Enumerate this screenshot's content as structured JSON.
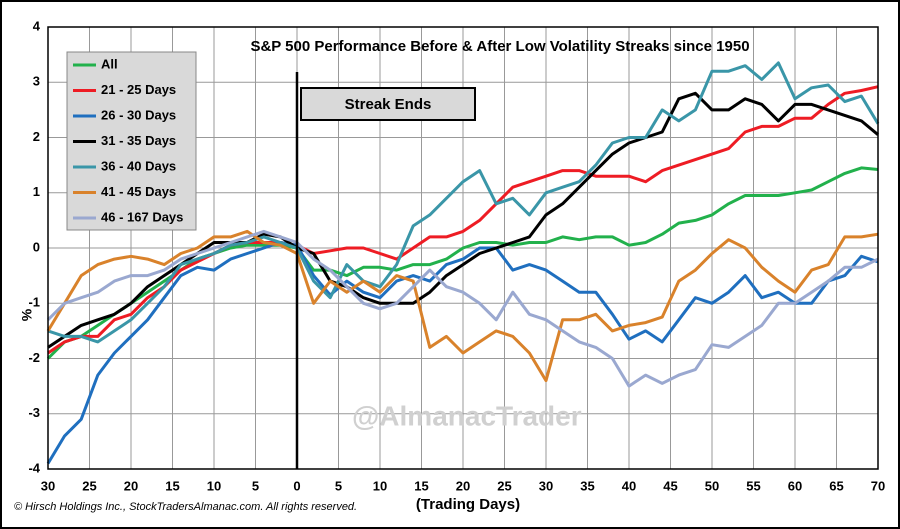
{
  "chart_data": {
    "type": "line",
    "title": "S&P 500 Performance Before & After Low Volatility Streaks since 1950",
    "annotation": "Streak Ends",
    "event_x": 0,
    "watermark": "@AlmanacTrader",
    "source": "© Hirsch Holdings Inc., StockTradersAlmanac.com. All rights reserved.",
    "x_label": "(Trading Days)",
    "y_label": "%",
    "grid": true,
    "legend": "upper left",
    "xlim": [
      -30,
      70
    ],
    "ylim": [
      -4,
      4
    ],
    "xticks": [
      {
        "value": -30,
        "label": "30"
      },
      {
        "value": -25,
        "label": "25"
      },
      {
        "value": -20,
        "label": "20"
      },
      {
        "value": -15,
        "label": "15"
      },
      {
        "value": -10,
        "label": "10"
      },
      {
        "value": -5,
        "label": "5"
      },
      0,
      5,
      10,
      15,
      20,
      25,
      30,
      35,
      40,
      45,
      50,
      55,
      60,
      65,
      70
    ],
    "yticks": [
      -4,
      -3,
      -2,
      -1,
      0,
      1,
      2,
      3,
      4
    ],
    "x": [
      -30,
      -28,
      -26,
      -24,
      -22,
      -20,
      -18,
      -16,
      -14,
      -12,
      -10,
      -8,
      -6,
      -4,
      -2,
      0,
      2,
      4,
      6,
      8,
      10,
      12,
      14,
      16,
      18,
      20,
      22,
      24,
      26,
      28,
      30,
      32,
      34,
      36,
      38,
      40,
      42,
      44,
      46,
      48,
      50,
      52,
      54,
      56,
      58,
      60,
      62,
      64,
      66,
      68,
      70
    ],
    "series": [
      {
        "name": "All",
        "color": "#22b14c",
        "values": [
          -2.0,
          -1.7,
          -1.6,
          -1.4,
          -1.2,
          -1.0,
          -0.8,
          -0.6,
          -0.4,
          -0.2,
          -0.1,
          0.0,
          0.05,
          0.05,
          0.05,
          0.0,
          -0.4,
          -0.4,
          -0.5,
          -0.35,
          -0.35,
          -0.4,
          -0.3,
          -0.3,
          -0.2,
          0.0,
          0.1,
          0.1,
          0.05,
          0.1,
          0.1,
          0.2,
          0.15,
          0.2,
          0.2,
          0.05,
          0.1,
          0.25,
          0.45,
          0.5,
          0.6,
          0.8,
          0.95,
          0.95,
          0.95,
          1.0,
          1.05,
          1.2,
          1.35,
          1.45,
          1.42
        ]
      },
      {
        "name": "21 - 25 Days",
        "color": "#ee1c24",
        "values": [
          -1.9,
          -1.7,
          -1.6,
          -1.6,
          -1.3,
          -1.2,
          -0.9,
          -0.7,
          -0.4,
          -0.25,
          -0.1,
          0.05,
          0.1,
          0.1,
          0.1,
          0.05,
          -0.1,
          -0.05,
          0.0,
          0.0,
          -0.1,
          -0.2,
          0.0,
          0.2,
          0.2,
          0.3,
          0.5,
          0.8,
          1.1,
          1.2,
          1.3,
          1.4,
          1.4,
          1.3,
          1.3,
          1.3,
          1.2,
          1.4,
          1.5,
          1.6,
          1.7,
          1.8,
          2.1,
          2.2,
          2.2,
          2.35,
          2.35,
          2.6,
          2.8,
          2.85,
          2.92
        ]
      },
      {
        "name": "26 - 30 Days",
        "color": "#1f6fbf",
        "values": [
          -3.9,
          -3.4,
          -3.1,
          -2.3,
          -1.9,
          -1.6,
          -1.3,
          -0.9,
          -0.5,
          -0.35,
          -0.4,
          -0.2,
          -0.1,
          0.0,
          0.1,
          0.05,
          -0.5,
          -0.85,
          -0.6,
          -0.8,
          -0.9,
          -0.6,
          -0.5,
          -0.6,
          -0.3,
          -0.2,
          0.0,
          0.0,
          -0.4,
          -0.3,
          -0.4,
          -0.6,
          -0.8,
          -0.8,
          -1.2,
          -1.65,
          -1.5,
          -1.7,
          -1.3,
          -0.9,
          -1.0,
          -0.8,
          -0.5,
          -0.9,
          -0.8,
          -1.0,
          -1.0,
          -0.6,
          -0.5,
          -0.15,
          -0.25
        ]
      },
      {
        "name": "31 - 35 Days",
        "color": "#000000",
        "values": [
          -1.8,
          -1.6,
          -1.4,
          -1.3,
          -1.2,
          -1.0,
          -0.7,
          -0.5,
          -0.3,
          -0.1,
          0.1,
          0.1,
          0.1,
          0.25,
          0.2,
          0.0,
          -0.1,
          -0.6,
          -0.7,
          -0.9,
          -1.0,
          -1.0,
          -1.0,
          -0.8,
          -0.5,
          -0.3,
          -0.1,
          0.0,
          0.1,
          0.2,
          0.6,
          0.8,
          1.1,
          1.4,
          1.7,
          1.9,
          2.0,
          2.1,
          2.7,
          2.8,
          2.5,
          2.5,
          2.7,
          2.6,
          2.3,
          2.6,
          2.6,
          2.5,
          2.4,
          2.3,
          2.05
        ]
      },
      {
        "name": "36 - 40 Days",
        "color": "#3a96a8",
        "values": [
          -1.5,
          -1.6,
          -1.6,
          -1.7,
          -1.5,
          -1.3,
          -1.0,
          -0.7,
          -0.3,
          -0.2,
          -0.1,
          0.05,
          0.1,
          0.2,
          0.1,
          0.0,
          -0.6,
          -0.9,
          -0.3,
          -0.6,
          -0.7,
          -0.3,
          0.4,
          0.6,
          0.9,
          1.2,
          1.4,
          0.8,
          0.9,
          0.6,
          1.0,
          1.1,
          1.2,
          1.5,
          1.9,
          2.0,
          2.0,
          2.5,
          2.3,
          2.5,
          3.2,
          3.2,
          3.3,
          3.05,
          3.35,
          2.7,
          2.9,
          2.95,
          2.65,
          2.75,
          2.25
        ]
      },
      {
        "name": "41 - 45 Days",
        "color": "#d9822b",
        "values": [
          -1.5,
          -1.0,
          -0.5,
          -0.3,
          -0.2,
          -0.15,
          -0.2,
          -0.3,
          -0.1,
          0.0,
          0.2,
          0.2,
          0.3,
          0.1,
          0.05,
          -0.1,
          -1.0,
          -0.6,
          -0.8,
          -0.6,
          -0.8,
          -0.5,
          -0.6,
          -1.8,
          -1.6,
          -1.9,
          -1.7,
          -1.5,
          -1.6,
          -1.9,
          -2.4,
          -1.3,
          -1.3,
          -1.2,
          -1.5,
          -1.4,
          -1.35,
          -1.25,
          -0.6,
          -0.4,
          -0.1,
          0.15,
          0.0,
          -0.35,
          -0.6,
          -0.8,
          -0.4,
          -0.3,
          0.2,
          0.2,
          0.25
        ]
      },
      {
        "name": "46 - 167 Days",
        "color": "#9aa8d0",
        "values": [
          -1.3,
          -1.0,
          -0.9,
          -0.8,
          -0.6,
          -0.5,
          -0.5,
          -0.4,
          -0.2,
          -0.1,
          0.0,
          0.1,
          0.2,
          0.3,
          0.2,
          0.1,
          -0.2,
          -0.4,
          -0.7,
          -1.0,
          -1.1,
          -1.0,
          -0.7,
          -0.4,
          -0.7,
          -0.8,
          -1.0,
          -1.3,
          -0.8,
          -1.2,
          -1.3,
          -1.5,
          -1.7,
          -1.8,
          -2.0,
          -2.5,
          -2.3,
          -2.45,
          -2.3,
          -2.2,
          -1.75,
          -1.8,
          -1.6,
          -1.4,
          -1.0,
          -1.0,
          -0.8,
          -0.6,
          -0.35,
          -0.35,
          -0.2
        ]
      }
    ]
  }
}
